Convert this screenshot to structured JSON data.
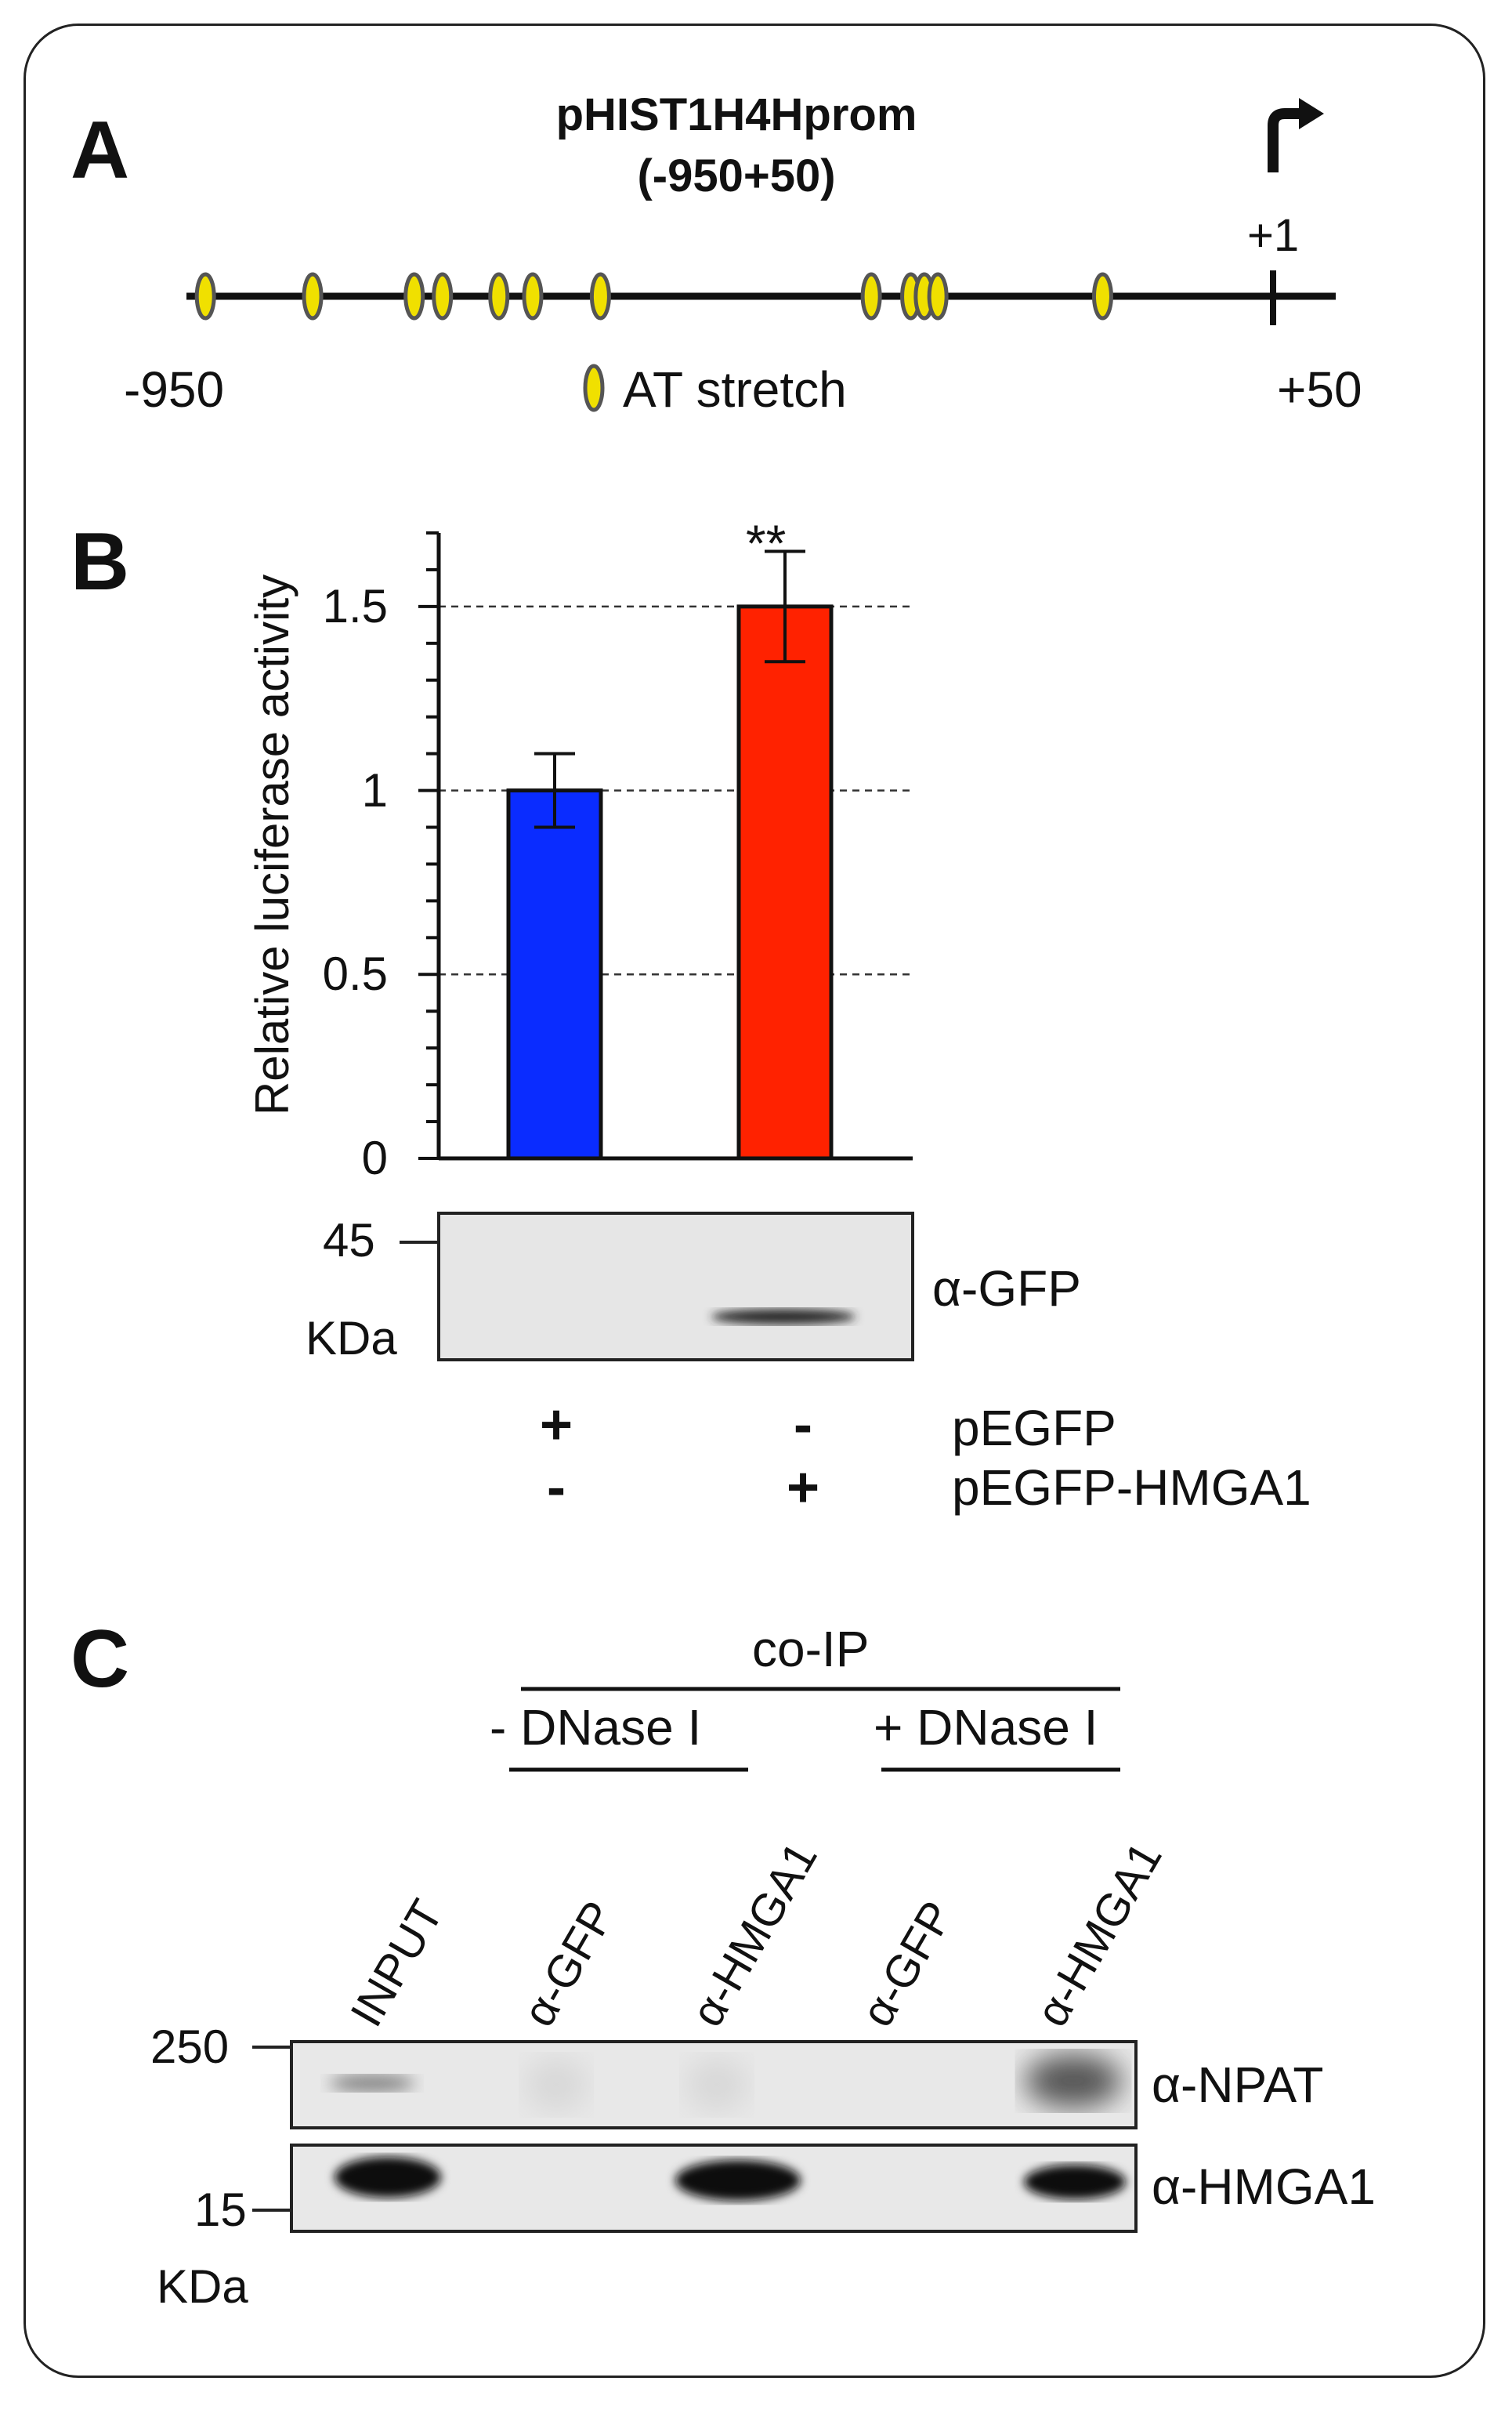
{
  "panelA": {
    "letter": "A",
    "title_line1": "pHIST1H4Hprom",
    "title_line2": "(-950+50)",
    "tss_label": "+1",
    "left_end": "-950",
    "right_end": "+50",
    "legend_label": "AT stretch",
    "at_stretch_color": "#f0e000"
  },
  "panelB": {
    "letter": "B",
    "significance": "**",
    "blot_marker": "45",
    "blot_unit": "KDa",
    "blot_antibody": "α-GFP",
    "plasmid_rows": [
      {
        "name": "pEGFP",
        "lane1": "+",
        "lane2": "-"
      },
      {
        "name": "pEGFP-HMGA1",
        "lane1": "-",
        "lane2": "+"
      }
    ]
  },
  "chart_data": {
    "type": "bar",
    "ylabel": "Relative luciferase activity",
    "ylim": [
      0,
      1.7
    ],
    "yticks": [
      "0",
      "0.5",
      "1",
      "1.5"
    ],
    "grid": "dashed at 0.5, 1, 1.5",
    "categories": [
      "pEGFP",
      "pEGFP-HMGA1"
    ],
    "values": [
      1.0,
      1.5
    ],
    "errors": [
      0.1,
      0.15
    ],
    "colors": [
      "#0a2cff",
      "#ff2200"
    ]
  },
  "panelC": {
    "letter": "C",
    "coip_label": "co-IP",
    "minus_dnase": "- DNase I",
    "plus_dnase": "+ DNase I",
    "lanes": [
      "INPUT",
      "α-GFP",
      "α-HMGA1",
      "α-GFP",
      "α-HMGA1"
    ],
    "marker_top": "250",
    "marker_bottom": "15",
    "unit": "KDa",
    "blot1_antibody": "α-NPAT",
    "blot2_antibody": "α-HMGA1"
  }
}
